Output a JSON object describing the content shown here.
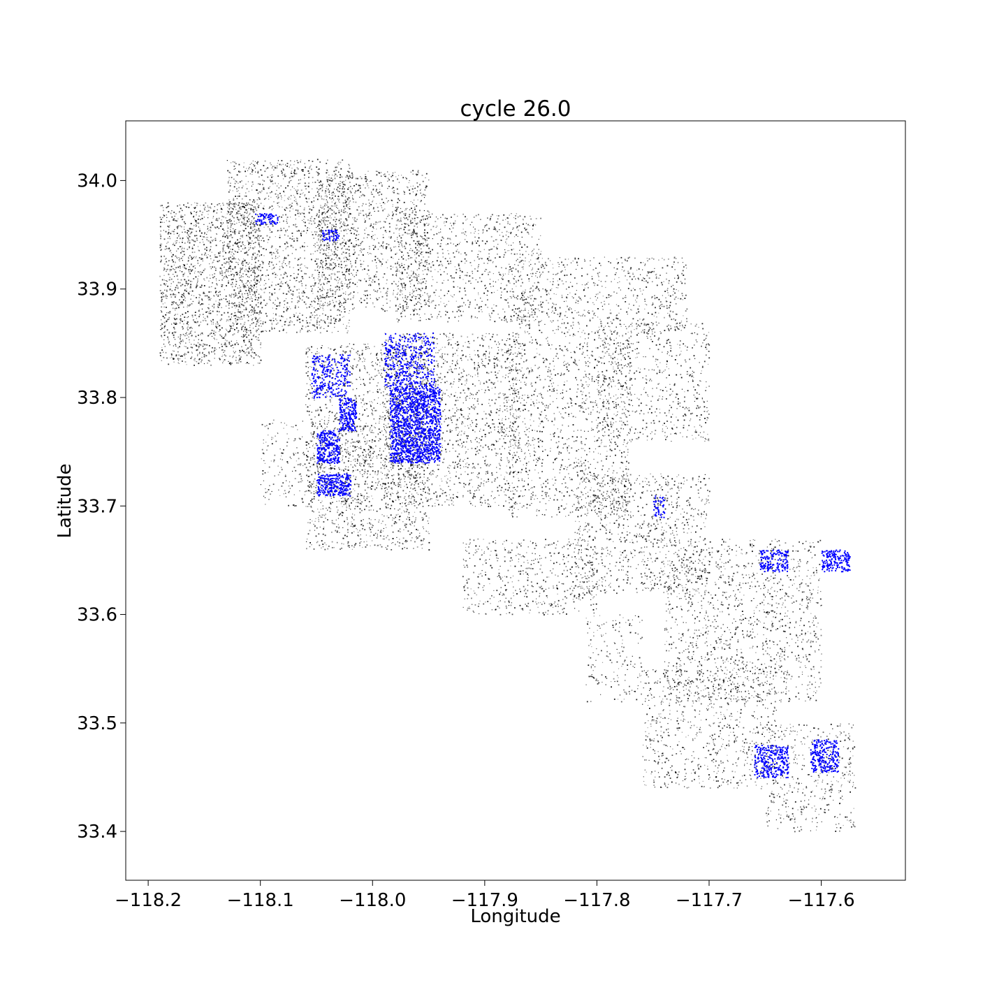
{
  "chart_data": {
    "type": "scatter",
    "title": "cycle 26.0",
    "xlabel": "Longitude",
    "ylabel": "Latitude",
    "xlim": [
      -118.22,
      -117.525
    ],
    "ylim": [
      33.355,
      34.055
    ],
    "x_ticks": [
      -118.2,
      -118.1,
      -118.0,
      -117.9,
      -117.8,
      -117.7,
      -117.6
    ],
    "x_tick_labels": [
      "−118.2",
      "−118.1",
      "−118.0",
      "−117.9",
      "−117.8",
      "−117.7",
      "−117.6"
    ],
    "y_ticks": [
      33.4,
      33.5,
      33.6,
      33.7,
      33.8,
      33.9,
      34.0
    ],
    "y_tick_labels": [
      "33.4",
      "33.5",
      "33.6",
      "33.7",
      "33.8",
      "33.9",
      "34.0"
    ],
    "grid": false,
    "colors": {
      "base": "#000000",
      "highlight": "#0000ff"
    },
    "series": [
      {
        "color": "#000000",
        "regions": [
          {
            "lon": [
              -118.19,
              -118.1
            ],
            "lat": [
              33.83,
              33.98
            ],
            "density": 0.9
          },
          {
            "lon": [
              -118.13,
              -118.02
            ],
            "lat": [
              33.86,
              34.02
            ],
            "density": 0.7
          },
          {
            "lon": [
              -118.05,
              -117.95
            ],
            "lat": [
              33.88,
              34.01
            ],
            "density": 0.6
          },
          {
            "lon": [
              -117.98,
              -117.85
            ],
            "lat": [
              33.87,
              33.97
            ],
            "density": 0.5
          },
          {
            "lon": [
              -117.88,
              -117.72
            ],
            "lat": [
              33.86,
              33.93
            ],
            "density": 0.45
          },
          {
            "lon": [
              -118.06,
              -117.95
            ],
            "lat": [
              33.66,
              33.85
            ],
            "density": 0.6
          },
          {
            "lon": [
              -117.99,
              -117.87
            ],
            "lat": [
              33.7,
              33.86
            ],
            "density": 0.6
          },
          {
            "lon": [
              -117.88,
              -117.77
            ],
            "lat": [
              33.69,
              33.86
            ],
            "density": 0.5
          },
          {
            "lon": [
              -117.8,
              -117.7
            ],
            "lat": [
              33.76,
              33.87
            ],
            "density": 0.4
          },
          {
            "lon": [
              -117.82,
              -117.7
            ],
            "lat": [
              33.62,
              33.73
            ],
            "density": 0.5
          },
          {
            "lon": [
              -117.92,
              -117.8
            ],
            "lat": [
              33.6,
              33.67
            ],
            "density": 0.45
          },
          {
            "lon": [
              -117.74,
              -117.6
            ],
            "lat": [
              33.52,
              33.67
            ],
            "density": 0.45
          },
          {
            "lon": [
              -117.76,
              -117.64
            ],
            "lat": [
              33.44,
              33.55
            ],
            "density": 0.45
          },
          {
            "lon": [
              -117.65,
              -117.57
            ],
            "lat": [
              33.4,
              33.5
            ],
            "density": 0.4
          },
          {
            "lon": [
              -118.1,
              -118.0
            ],
            "lat": [
              33.7,
              33.78
            ],
            "density": 0.35
          },
          {
            "lon": [
              -117.81,
              -117.76
            ],
            "lat": [
              33.52,
              33.6
            ],
            "density": 0.3
          }
        ]
      },
      {
        "color": "#0000ff",
        "regions": [
          {
            "lon": [
              -118.03,
              -118.015
            ],
            "lat": [
              33.77,
              33.8
            ],
            "density": 0.95
          },
          {
            "lon": [
              -118.05,
              -118.03
            ],
            "lat": [
              33.74,
              33.77
            ],
            "density": 0.95
          },
          {
            "lon": [
              -118.05,
              -118.02
            ],
            "lat": [
              33.71,
              33.73
            ],
            "density": 0.95
          },
          {
            "lon": [
              -117.985,
              -117.94
            ],
            "lat": [
              33.74,
              33.81
            ],
            "density": 0.95
          },
          {
            "lon": [
              -117.99,
              -117.945
            ],
            "lat": [
              33.81,
              33.86
            ],
            "density": 0.4
          },
          {
            "lon": [
              -118.055,
              -118.02
            ],
            "lat": [
              33.8,
              33.84
            ],
            "density": 0.4
          },
          {
            "lon": [
              -118.105,
              -118.085
            ],
            "lat": [
              33.96,
              33.97
            ],
            "density": 0.8
          },
          {
            "lon": [
              -118.045,
              -118.03
            ],
            "lat": [
              33.945,
              33.955
            ],
            "density": 0.8
          },
          {
            "lon": [
              -117.655,
              -117.63
            ],
            "lat": [
              33.64,
              33.66
            ],
            "density": 0.7
          },
          {
            "lon": [
              -117.6,
              -117.575
            ],
            "lat": [
              33.64,
              33.66
            ],
            "density": 0.8
          },
          {
            "lon": [
              -117.66,
              -117.63
            ],
            "lat": [
              33.45,
              33.48
            ],
            "density": 0.7
          },
          {
            "lon": [
              -117.61,
              -117.585
            ],
            "lat": [
              33.455,
              33.485
            ],
            "density": 0.7
          },
          {
            "lon": [
              -117.75,
              -117.74
            ],
            "lat": [
              33.69,
              33.71
            ],
            "density": 0.5
          }
        ]
      }
    ]
  }
}
